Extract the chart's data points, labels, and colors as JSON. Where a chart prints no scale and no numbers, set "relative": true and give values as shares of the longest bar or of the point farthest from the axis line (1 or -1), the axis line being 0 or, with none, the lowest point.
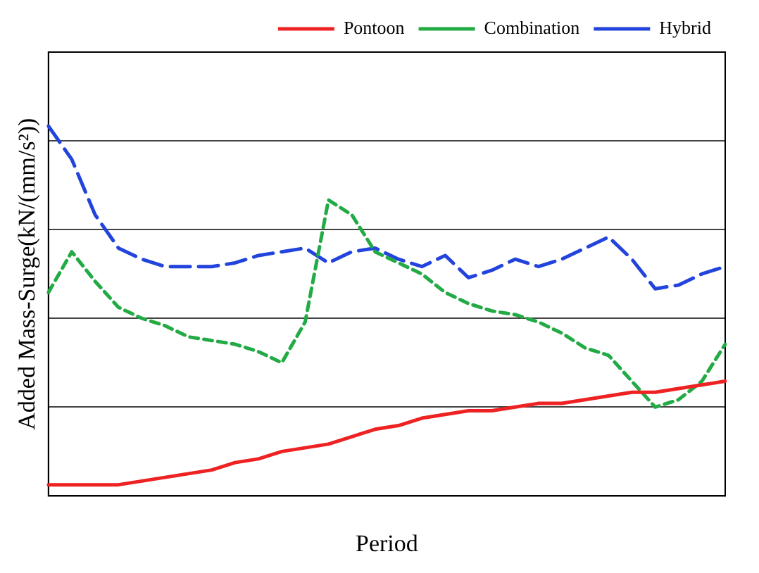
{
  "chart_data": {
    "type": "line",
    "xlabel": "Period",
    "ylabel": "Added Mass-Surge(kN/(mm/s²))",
    "relative": true,
    "grid": "y",
    "legend": "top right",
    "marker": "none",
    "categories": [
      null,
      null,
      null,
      null,
      null,
      null,
      null,
      null,
      null,
      null,
      null,
      null,
      null,
      null,
      null,
      null,
      null,
      null,
      null,
      null,
      null,
      null,
      null,
      null,
      null,
      null,
      null,
      null,
      null,
      null
    ],
    "series": [
      {
        "name": "Pontoon",
        "color": "#ee2222",
        "line_style": "solid",
        "values": [
          0.03,
          0.03,
          0.03,
          0.03,
          0.04,
          0.05,
          0.06,
          0.07,
          0.09,
          0.1,
          0.12,
          0.13,
          0.14,
          0.16,
          0.18,
          0.19,
          0.21,
          0.22,
          0.23,
          0.23,
          0.24,
          0.25,
          0.25,
          0.26,
          0.27,
          0.28,
          0.28,
          0.29,
          0.3,
          0.31
        ]
      },
      {
        "name": "Combination",
        "color": "#22aa44",
        "line_style": "dashed",
        "values": [
          0.55,
          0.66,
          0.58,
          0.51,
          0.48,
          0.46,
          0.43,
          0.42,
          0.41,
          0.39,
          0.36,
          0.47,
          0.8,
          0.76,
          0.66,
          0.63,
          0.6,
          0.55,
          0.52,
          0.5,
          0.49,
          0.47,
          0.44,
          0.4,
          0.38,
          0.31,
          0.24,
          0.26,
          0.31,
          0.41
        ]
      },
      {
        "name": "Hybrid",
        "color": "#2244dd",
        "line_style": "longdash",
        "values": [
          1,
          0.91,
          0.76,
          0.67,
          0.64,
          0.62,
          0.62,
          0.62,
          0.63,
          0.65,
          0.66,
          0.67,
          0.63,
          0.66,
          0.67,
          0.64,
          0.62,
          0.65,
          0.59,
          0.61,
          0.64,
          0.62,
          0.64,
          0.67,
          0.7,
          0.64,
          0.56,
          0.57,
          0.6,
          0.62
        ]
      }
    ]
  }
}
